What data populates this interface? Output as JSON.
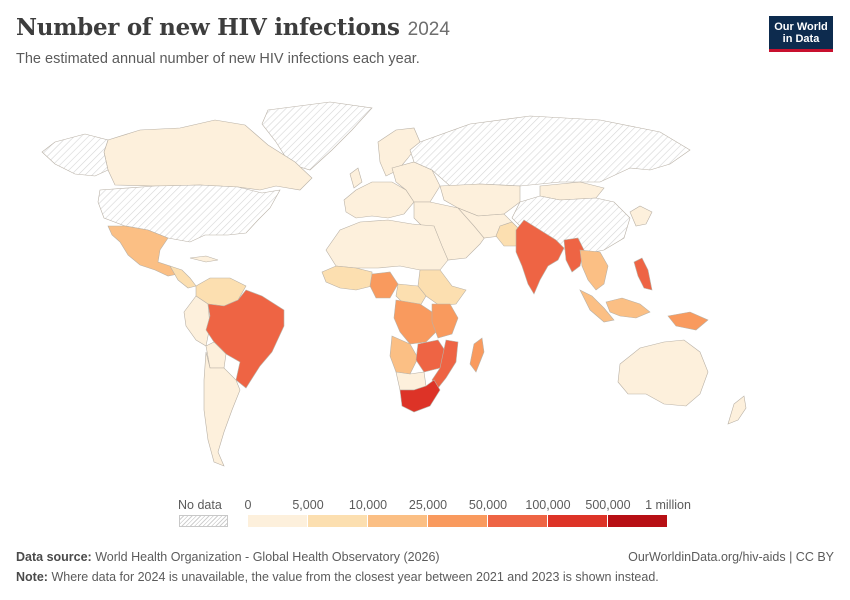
{
  "header": {
    "title": "Number of new HIV infections",
    "year": "2024",
    "subtitle": "The estimated annual number of new HIV infections each year."
  },
  "logo": {
    "line1": "Our World",
    "line2": "in Data"
  },
  "legend": {
    "no_data_label": "No data",
    "tick_labels": [
      "0",
      "5,000",
      "10,000",
      "25,000",
      "50,000",
      "100,000",
      "500,000",
      "1 million"
    ],
    "bin_colors": [
      "#fdf0dc",
      "#fcdfb0",
      "#fbbf84",
      "#f99a5e",
      "#ee6444",
      "#dd3327",
      "#b70f14"
    ]
  },
  "map_colors": {
    "no_data": "hatched",
    "bin_0_5k": "#fdf0dc",
    "bin_5k_10k": "#fcdfb0",
    "bin_10k_25k": "#fbbf84",
    "bin_25k_50k": "#f99a5e",
    "bin_50k_100k": "#ee6444",
    "bin_100k_500k": "#dd3327"
  },
  "footer": {
    "source_label": "Data source:",
    "source_text": "World Health Organization - Global Health Observatory (2026)",
    "url_text": "OurWorldinData.org/hiv-aids | CC BY",
    "note_label": "Note:",
    "note_text": "Where data for 2024 is unavailable, the value from the closest year between 2021 and 2023 is shown instead."
  }
}
